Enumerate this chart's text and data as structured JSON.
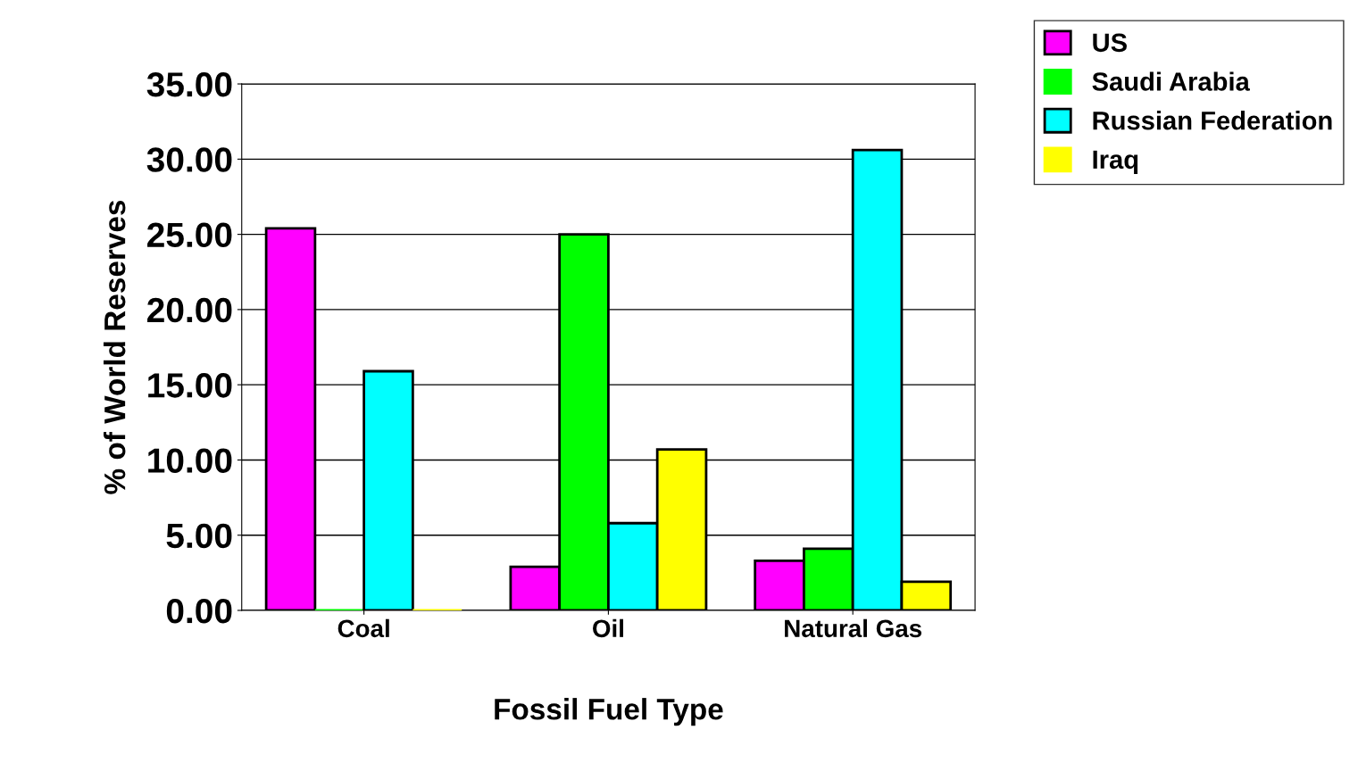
{
  "chart_data": {
    "type": "bar",
    "xlabel": "Fossil Fuel Type",
    "ylabel": "% of World Reserves",
    "categories": [
      "Coal",
      "Oil",
      "Natural Gas"
    ],
    "series": [
      {
        "name": "US",
        "color": "#ff00ff",
        "values": [
          25.4,
          2.9,
          3.3
        ]
      },
      {
        "name": "Saudi Arabia",
        "color": "#00ff00",
        "values": [
          0,
          25.0,
          4.1
        ]
      },
      {
        "name": "Russian Federation",
        "color": "#00ffff",
        "values": [
          15.9,
          5.8,
          30.6
        ]
      },
      {
        "name": "Iraq",
        "color": "#ffff00",
        "values": [
          0,
          10.7,
          1.9
        ]
      }
    ],
    "ylim": [
      0,
      35
    ],
    "yticks": [
      {
        "value": 0,
        "label": "0.00"
      },
      {
        "value": 5,
        "label": "5.00"
      },
      {
        "value": 10,
        "label": "10.00"
      },
      {
        "value": 15,
        "label": "15.00"
      },
      {
        "value": 20,
        "label": "20.00"
      },
      {
        "value": 25,
        "label": "25.00"
      },
      {
        "value": 30,
        "label": "30.00"
      },
      {
        "value": 35,
        "label": "35.00"
      }
    ],
    "grid": "y",
    "legend": "top right"
  }
}
